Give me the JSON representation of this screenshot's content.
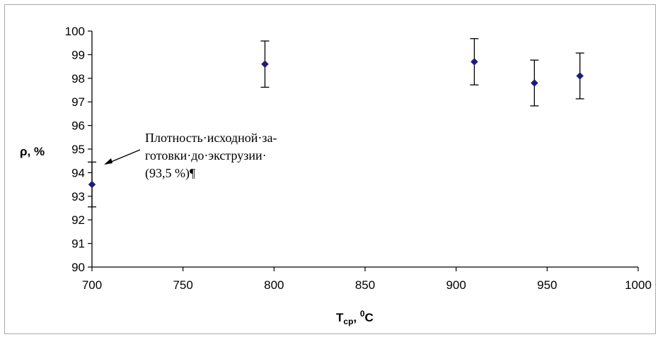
{
  "chart_data": {
    "type": "scatter",
    "title": "",
    "xlabel": {
      "main": "T",
      "sub": "ср",
      "unit_prefix": ", ",
      "unit_sup": "0",
      "unit": "C"
    },
    "ylabel": "ρ, %",
    "xlim": [
      700,
      1000
    ],
    "ylim": [
      90,
      100
    ],
    "xticks": [
      700,
      750,
      800,
      850,
      900,
      950,
      1000
    ],
    "yticks": [
      90,
      91,
      92,
      93,
      94,
      95,
      96,
      97,
      98,
      99,
      100
    ],
    "grid": false,
    "legend": "none",
    "points": [
      {
        "x": 700,
        "y": 93.5,
        "err": 0.95
      },
      {
        "x": 795,
        "y": 98.6,
        "err": 0.98
      },
      {
        "x": 910,
        "y": 98.7,
        "err": 0.98
      },
      {
        "x": 943,
        "y": 97.8,
        "err": 0.97
      },
      {
        "x": 968,
        "y": 98.1,
        "err": 0.97
      }
    ],
    "marker_color": "#1c1c7a",
    "annotation": {
      "lines": [
        "Плотность·исходной·за-",
        "готовки·до·экструзии·",
        "(93,5 %)¶"
      ],
      "target": {
        "x": 700,
        "y": 94.4
      }
    }
  }
}
